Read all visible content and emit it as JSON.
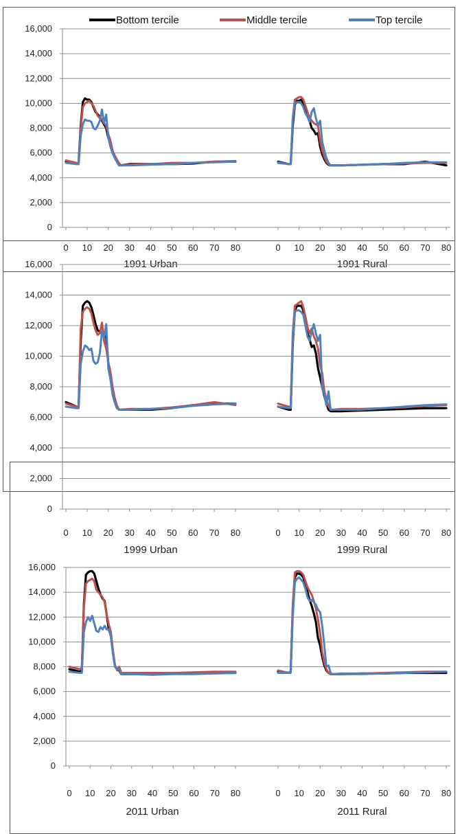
{
  "legend": [
    {
      "name": "Bottom tercile",
      "color": "#000000"
    },
    {
      "name": "Middle tercile",
      "color": "#c0504d"
    },
    {
      "name": "Top tercile",
      "color": "#4f81bd"
    }
  ],
  "chart_data": [
    {
      "type": "line",
      "title": "",
      "ylim": [
        0,
        16000
      ],
      "yticks": [
        "0",
        "2,000",
        "4,000",
        "6,000",
        "8,000",
        "10,000",
        "12,000",
        "14,000",
        "16,000"
      ],
      "grid": true,
      "legend_position": "top",
      "panels": [
        {
          "label": "1991 Urban",
          "xlim": [
            0,
            80
          ],
          "xticks": [
            "0",
            "10",
            "20",
            "30",
            "40",
            "50",
            "60",
            "70",
            "80"
          ],
          "x": [
            0,
            5,
            6,
            7,
            8,
            9,
            10,
            11,
            12,
            13,
            14,
            15,
            16,
            17,
            18,
            19,
            20,
            21,
            22,
            23,
            24,
            25,
            26,
            30,
            40,
            50,
            60,
            70,
            80
          ],
          "series": [
            {
              "name": "Bottom tercile",
              "values": [
                5300,
                5150,
                5200,
                8200,
                10100,
                10400,
                10300,
                10300,
                10100,
                9700,
                9300,
                9100,
                8900,
                8600,
                8300,
                8000,
                7200,
                6900,
                6000,
                5700,
                5400,
                5100,
                5000,
                5100,
                5100,
                5100,
                5150,
                5300,
                5300
              ]
            },
            {
              "name": "Middle tercile",
              "values": [
                5400,
                5200,
                5100,
                8000,
                9700,
                10000,
                10100,
                10200,
                10000,
                9800,
                9400,
                9000,
                8800,
                8700,
                8400,
                8200,
                7500,
                7000,
                6200,
                5800,
                5500,
                5200,
                5000,
                5050,
                5100,
                5200,
                5200,
                5300,
                5350
              ]
            },
            {
              "name": "Top tercile",
              "values": [
                5200,
                5100,
                5100,
                7400,
                8300,
                8700,
                8600,
                8600,
                8500,
                8000,
                7900,
                8200,
                8600,
                9500,
                8400,
                9100,
                7200,
                6500,
                6000,
                5600,
                5300,
                5000,
                5000,
                5000,
                5050,
                5100,
                5200,
                5250,
                5300
              ]
            }
          ]
        },
        {
          "label": "1991 Rural",
          "xlim": [
            0,
            80
          ],
          "xticks": [
            "0",
            "10",
            "20",
            "30",
            "40",
            "50",
            "60",
            "70",
            "80"
          ],
          "x": [
            0,
            5,
            6,
            7,
            8,
            9,
            10,
            11,
            12,
            13,
            14,
            15,
            16,
            17,
            18,
            19,
            20,
            21,
            22,
            23,
            24,
            25,
            26,
            30,
            40,
            50,
            60,
            70,
            80
          ],
          "series": [
            {
              "name": "Bottom tercile",
              "values": [
                5300,
                5100,
                5100,
                8200,
                9900,
                10200,
                10200,
                10300,
                10000,
                9400,
                9000,
                8600,
                8000,
                7800,
                7500,
                7600,
                6500,
                5900,
                5500,
                5200,
                5050,
                5000,
                5000,
                5000,
                5050,
                5100,
                5100,
                5300,
                5000
              ]
            },
            {
              "name": "Middle tercile",
              "values": [
                5250,
                5100,
                5100,
                8800,
                10300,
                10400,
                10500,
                10500,
                10300,
                9800,
                9300,
                8800,
                8600,
                8400,
                8300,
                8200,
                6900,
                6200,
                5700,
                5300,
                5100,
                5000,
                5000,
                5000,
                5050,
                5100,
                5150,
                5200,
                5200
              ]
            },
            {
              "name": "Top tercile",
              "values": [
                5200,
                5100,
                5100,
                8600,
                10000,
                10100,
                10100,
                10000,
                9700,
                9200,
                8900,
                8500,
                9300,
                9600,
                8800,
                8200,
                8600,
                6900,
                6200,
                5600,
                5200,
                5000,
                5000,
                5000,
                5050,
                5100,
                5200,
                5250,
                5250
              ]
            }
          ]
        }
      ]
    },
    {
      "type": "line",
      "title": "",
      "ylim": [
        0,
        16000
      ],
      "yticks": [
        "0",
        "2,000",
        "4,000",
        "6,000",
        "8,000",
        "10,000",
        "12,000",
        "14,000",
        "16,000"
      ],
      "grid": true,
      "panels": [
        {
          "label": "1999 Urban",
          "xlim": [
            0,
            80
          ],
          "xticks": [
            "0",
            "10",
            "20",
            "30",
            "40",
            "50",
            "60",
            "70",
            "80"
          ],
          "x": [
            0,
            5,
            6,
            7,
            8,
            9,
            10,
            11,
            12,
            13,
            14,
            15,
            16,
            17,
            18,
            19,
            20,
            21,
            22,
            23,
            24,
            25,
            26,
            30,
            40,
            50,
            60,
            70,
            80
          ],
          "series": [
            {
              "name": "Bottom tercile",
              "values": [
                7000,
                6700,
                6700,
                11000,
                13300,
                13500,
                13600,
                13500,
                13200,
                12700,
                12100,
                11700,
                11600,
                11500,
                11400,
                11300,
                9500,
                8800,
                7800,
                7100,
                6700,
                6500,
                6500,
                6500,
                6500,
                6600,
                6800,
                6900,
                6900
              ]
            },
            {
              "name": "Middle tercile",
              "values": [
                6900,
                6700,
                6700,
                11800,
                12900,
                13100,
                13200,
                13100,
                12800,
                12200,
                11700,
                11400,
                11500,
                12200,
                11000,
                10500,
                9600,
                9000,
                8000,
                7300,
                6800,
                6500,
                6500,
                6550,
                6550,
                6650,
                6800,
                7000,
                6800
              ]
            },
            {
              "name": "Top tercile",
              "values": [
                6700,
                6600,
                6600,
                9500,
                10300,
                10700,
                10600,
                10400,
                10500,
                9700,
                9500,
                9600,
                10200,
                11600,
                11200,
                12100,
                9200,
                8500,
                7500,
                7000,
                6600,
                6500,
                6500,
                6500,
                6550,
                6600,
                6750,
                6850,
                6900
              ]
            }
          ]
        },
        {
          "label": "1999 Rural",
          "xlim": [
            0,
            80
          ],
          "xticks": [
            "0",
            "10",
            "20",
            "30",
            "40",
            "50",
            "60",
            "70",
            "80"
          ],
          "x": [
            0,
            5,
            6,
            7,
            8,
            9,
            10,
            11,
            12,
            13,
            14,
            15,
            16,
            17,
            18,
            19,
            20,
            21,
            22,
            23,
            24,
            25,
            26,
            30,
            40,
            50,
            60,
            70,
            80
          ],
          "series": [
            {
              "name": "Bottom tercile",
              "values": [
                6700,
                6500,
                6500,
                10800,
                13000,
                13300,
                13300,
                13300,
                13000,
                12200,
                11500,
                11100,
                10600,
                10700,
                10200,
                9200,
                8600,
                8000,
                7400,
                6900,
                6500,
                6400,
                6400,
                6400,
                6450,
                6500,
                6550,
                6600,
                6600
              ]
            },
            {
              "name": "Middle tercile",
              "values": [
                6900,
                6700,
                6700,
                11500,
                13300,
                13400,
                13500,
                13600,
                13200,
                12600,
                11900,
                11500,
                11800,
                11300,
                11000,
                10500,
                9400,
                8900,
                7700,
                7200,
                6700,
                6500,
                6500,
                6550,
                6550,
                6600,
                6650,
                6750,
                6800
              ]
            },
            {
              "name": "Top tercile",
              "values": [
                6700,
                6600,
                6600,
                11000,
                12900,
                13000,
                13000,
                12900,
                12700,
                12000,
                11300,
                11000,
                11600,
                12100,
                11500,
                11000,
                11400,
                7900,
                7500,
                6800,
                7700,
                6500,
                6500,
                6500,
                6500,
                6600,
                6700,
                6800,
                6850
              ]
            }
          ]
        }
      ]
    },
    {
      "type": "line",
      "title": "",
      "ylim": [
        0,
        16000
      ],
      "yticks": [
        "0",
        "2,000",
        "4,000",
        "6,000",
        "8,000",
        "10,000",
        "12,000",
        "14,000",
        "16,000"
      ],
      "grid": true,
      "panels": [
        {
          "label": "2011 Urban",
          "xlim": [
            0,
            80
          ],
          "xticks": [
            "0",
            "10",
            "20",
            "30",
            "40",
            "50",
            "60",
            "70",
            "80"
          ],
          "x": [
            0,
            5,
            6,
            7,
            8,
            9,
            10,
            11,
            12,
            13,
            14,
            15,
            16,
            17,
            18,
            19,
            20,
            21,
            22,
            23,
            24,
            25,
            26,
            30,
            40,
            50,
            60,
            70,
            80
          ],
          "series": [
            {
              "name": "Bottom tercile",
              "values": [
                7800,
                7600,
                7700,
                13000,
                15400,
                15600,
                15700,
                15700,
                15500,
                14900,
                14300,
                13800,
                13500,
                13300,
                12200,
                11000,
                10500,
                9200,
                8000,
                7800,
                7700,
                7400,
                7400,
                7400,
                7450,
                7450,
                7500,
                7500,
                7500
              ]
            },
            {
              "name": "Middle tercile",
              "values": [
                8000,
                7800,
                7900,
                12800,
                14700,
                14900,
                15000,
                15100,
                14900,
                14200,
                14000,
                13800,
                13600,
                13200,
                12200,
                11400,
                10800,
                9300,
                8100,
                7700,
                8000,
                7500,
                7500,
                7500,
                7500,
                7500,
                7550,
                7600,
                7600
              ]
            },
            {
              "name": "Top tercile",
              "values": [
                7600,
                7500,
                7500,
                10800,
                11600,
                12000,
                11700,
                12100,
                11500,
                10900,
                10800,
                11200,
                11000,
                11300,
                11000,
                11000,
                10400,
                9000,
                8000,
                7800,
                7800,
                7400,
                7400,
                7400,
                7350,
                7400,
                7400,
                7450,
                7500
              ]
            }
          ]
        },
        {
          "label": "2011 Rural",
          "xlim": [
            0,
            80
          ],
          "xticks": [
            "0",
            "10",
            "20",
            "30",
            "40",
            "50",
            "60",
            "70",
            "80"
          ],
          "x": [
            0,
            5,
            6,
            7,
            8,
            9,
            10,
            11,
            12,
            13,
            14,
            15,
            16,
            17,
            18,
            19,
            20,
            21,
            22,
            23,
            24,
            25,
            26,
            30,
            40,
            50,
            60,
            70,
            80
          ],
          "series": [
            {
              "name": "Bottom tercile",
              "values": [
                7600,
                7500,
                7600,
                12600,
                15200,
                15500,
                15500,
                15400,
                15200,
                14600,
                14000,
                13400,
                12900,
                12300,
                11600,
                10300,
                9700,
                8800,
                8100,
                7700,
                7500,
                7400,
                7400,
                7400,
                7450,
                7450,
                7500,
                7500,
                7500
              ]
            },
            {
              "name": "Middle tercile",
              "values": [
                7700,
                7500,
                7600,
                13000,
                15600,
                15700,
                15700,
                15600,
                15400,
                14900,
                14400,
                14100,
                13800,
                13300,
                12700,
                11800,
                10700,
                9200,
                8300,
                7800,
                7500,
                7400,
                7400,
                7450,
                7450,
                7500,
                7550,
                7600,
                7600
              ]
            },
            {
              "name": "Top tercile",
              "values": [
                7500,
                7500,
                7500,
                12000,
                14800,
                15100,
                15200,
                15000,
                14800,
                14300,
                13600,
                13300,
                13400,
                13200,
                13000,
                12600,
                12400,
                11300,
                9700,
                8000,
                8100,
                7500,
                7400,
                7400,
                7400,
                7450,
                7500,
                7550,
                7600
              ]
            }
          ]
        }
      ]
    }
  ]
}
